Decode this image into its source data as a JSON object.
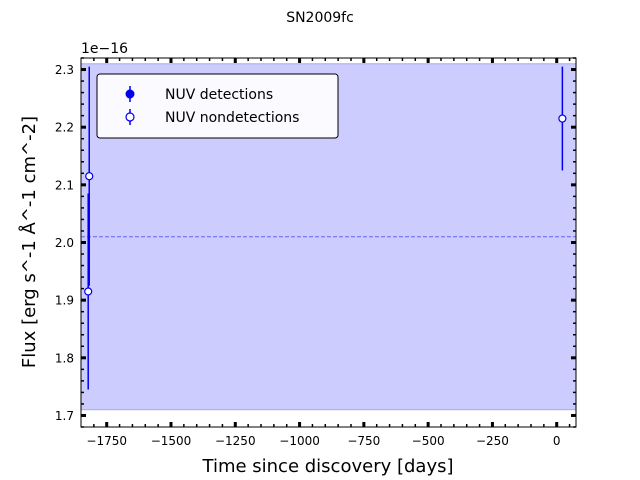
{
  "chart_data": {
    "type": "scatter",
    "title": "SN2009fc",
    "xlabel": "Time since discovery [days]",
    "ylabel": "Flux [erg s^-1 Å^-1 cm^-2]",
    "y_offset_text": "1e−16",
    "xlim": [
      -1850,
      75
    ],
    "ylim": [
      1.68,
      2.32
    ],
    "x_ticks": [
      -1750,
      -1500,
      -1250,
      -1000,
      -750,
      -500,
      -250,
      0
    ],
    "x_tick_labels": [
      "−1750",
      "−1500",
      "−1250",
      "−1000",
      "−750",
      "−500",
      "−250",
      "0"
    ],
    "y_ticks": [
      1.7,
      1.8,
      1.9,
      2.0,
      2.1,
      2.2,
      2.3
    ],
    "y_tick_labels": [
      "1.7",
      "1.8",
      "1.9",
      "2.0",
      "2.1",
      "2.2",
      "2.3"
    ],
    "band": {
      "y_low": 1.71,
      "y_high": 2.31,
      "color": "#ccccff"
    },
    "reference_line": {
      "y": 2.01,
      "color": "#6666ee"
    },
    "series": [
      {
        "name": "NUV detections",
        "marker": "filled-circle",
        "color": "#0000ee",
        "points": []
      },
      {
        "name": "NUV nondetections",
        "marker": "open-circle",
        "color": "#0000ee",
        "points": [
          {
            "x": -1818,
            "y": 2.115,
            "err": 0.19
          },
          {
            "x": -1822,
            "y": 1.915,
            "err": 0.17
          },
          {
            "x": 22,
            "y": 2.215,
            "err": 0.09
          }
        ]
      }
    ],
    "legend": {
      "position": "top-left"
    }
  }
}
